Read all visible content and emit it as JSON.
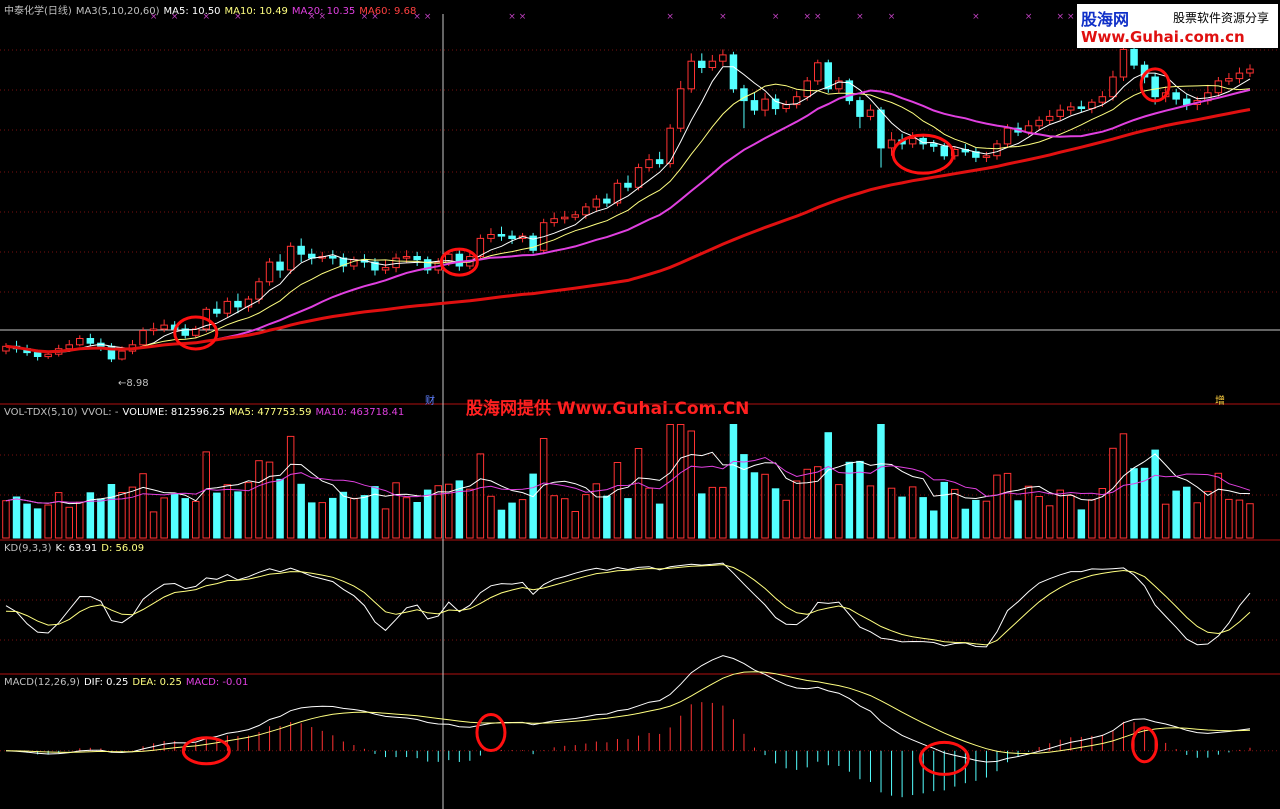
{
  "headers": {
    "main": [
      {
        "text": "中泰化学(日线)",
        "color": "#c0c0c0"
      },
      {
        "text": "MA3(5,10,20,60)",
        "color": "#c0c0c0"
      },
      {
        "text": "MA5: 10.50",
        "color": "#ffffff"
      },
      {
        "text": "MA10: 10.49",
        "color": "#ffff80"
      },
      {
        "text": "MA20: 10.35",
        "color": "#e040e0"
      },
      {
        "text": "MA60: 9.68",
        "color": "#ff4040"
      }
    ],
    "vol": [
      {
        "text": "VOL-TDX(5,10)",
        "color": "#c0c0c0"
      },
      {
        "text": "VVOL: -",
        "color": "#c0c0c0"
      },
      {
        "text": "VOLUME: 812596.25",
        "color": "#ffffff"
      },
      {
        "text": "MA5: 477753.59",
        "color": "#ffff80"
      },
      {
        "text": "MA10: 463718.41",
        "color": "#e040e0"
      }
    ],
    "kd": [
      {
        "text": "KD(9,3,3)",
        "color": "#c0c0c0"
      },
      {
        "text": "K: 63.91",
        "color": "#ffffff"
      },
      {
        "text": "D: 56.09",
        "color": "#ffff80"
      }
    ],
    "macd": [
      {
        "text": "MACD(12,26,9)",
        "color": "#c0c0c0"
      },
      {
        "text": "DIF: 0.25",
        "color": "#ffffff"
      },
      {
        "text": "DEA: 0.25",
        "color": "#ffff80"
      },
      {
        "text": "MACD: -0.01",
        "color": "#e040e0"
      }
    ]
  },
  "logo": {
    "name": "股海网",
    "slogan": "股票软件资源分享",
    "url": "Www.Guhai.com.cn"
  },
  "watermark": "股海网提供 Www.Guhai.Com.CN",
  "markers": {
    "low_label": "←8.98",
    "cai": "财",
    "zeng": "增"
  },
  "colors": {
    "up": "#ff3232",
    "down": "#54ffff",
    "ma5": "#ffffff",
    "ma10": "#ffff80",
    "ma20": "#e040e0",
    "ma60": "#e01010",
    "grid": "#7a1010",
    "circle": "#ff1010"
  },
  "chart_data": {
    "type": "candlestick",
    "candles": [
      [
        9.12,
        9.18,
        9.22,
        9.08
      ],
      [
        9.18,
        9.15,
        9.25,
        9.1
      ],
      [
        9.15,
        9.1,
        9.2,
        9.06
      ],
      [
        9.1,
        9.05,
        9.14,
        9.0
      ],
      [
        9.05,
        9.08,
        9.12,
        9.02
      ],
      [
        9.08,
        9.15,
        9.2,
        9.05
      ],
      [
        9.15,
        9.2,
        9.26,
        9.12
      ],
      [
        9.2,
        9.28,
        9.32,
        9.18
      ],
      [
        9.28,
        9.22,
        9.34,
        9.18
      ],
      [
        9.22,
        9.18,
        9.28,
        9.12
      ],
      [
        9.18,
        9.02,
        9.22,
        8.98
      ],
      [
        9.02,
        9.12,
        9.18,
        9.0
      ],
      [
        9.12,
        9.2,
        9.26,
        9.08
      ],
      [
        9.2,
        9.38,
        9.42,
        9.16
      ],
      [
        9.38,
        9.4,
        9.48,
        9.32
      ],
      [
        9.4,
        9.45,
        9.52,
        9.36
      ],
      [
        9.45,
        9.4,
        9.5,
        9.34
      ],
      [
        9.4,
        9.32,
        9.46,
        9.28
      ],
      [
        9.32,
        9.4,
        9.44,
        9.28
      ],
      [
        9.4,
        9.65,
        9.68,
        9.36
      ],
      [
        9.65,
        9.6,
        9.75,
        9.55
      ],
      [
        9.6,
        9.75,
        9.8,
        9.55
      ],
      [
        9.75,
        9.68,
        9.85,
        9.6
      ],
      [
        9.68,
        9.78,
        9.82,
        9.62
      ],
      [
        9.78,
        10.0,
        10.05,
        9.72
      ],
      [
        10.0,
        10.25,
        10.3,
        9.95
      ],
      [
        10.25,
        10.15,
        10.35,
        10.05
      ],
      [
        10.15,
        10.45,
        10.5,
        10.1
      ],
      [
        10.45,
        10.35,
        10.55,
        10.25
      ],
      [
        10.35,
        10.3,
        10.42,
        10.22
      ],
      [
        10.3,
        10.32,
        10.38,
        10.25
      ],
      [
        10.32,
        10.3,
        10.4,
        10.22
      ],
      [
        10.3,
        10.2,
        10.36,
        10.12
      ],
      [
        10.2,
        10.28,
        10.32,
        10.15
      ],
      [
        10.28,
        10.25,
        10.35,
        10.18
      ],
      [
        10.25,
        10.15,
        10.3,
        10.08
      ],
      [
        10.15,
        10.18,
        10.28,
        10.1
      ],
      [
        10.18,
        10.3,
        10.36,
        10.12
      ],
      [
        10.3,
        10.32,
        10.4,
        10.24
      ],
      [
        10.32,
        10.28,
        10.38,
        10.2
      ],
      [
        10.28,
        10.15,
        10.32,
        10.1
      ],
      [
        10.15,
        10.25,
        10.3,
        10.1
      ],
      [
        10.25,
        10.35,
        10.4,
        10.2
      ],
      [
        10.35,
        10.2,
        10.42,
        10.14
      ],
      [
        10.2,
        10.32,
        10.38,
        10.16
      ],
      [
        10.32,
        10.55,
        10.6,
        10.28
      ],
      [
        10.55,
        10.6,
        10.68,
        10.5
      ],
      [
        10.6,
        10.58,
        10.7,
        10.52
      ],
      [
        10.58,
        10.55,
        10.65,
        10.48
      ],
      [
        10.55,
        10.58,
        10.62,
        10.5
      ],
      [
        10.58,
        10.4,
        10.62,
        10.36
      ],
      [
        10.4,
        10.75,
        10.8,
        10.35
      ],
      [
        10.75,
        10.8,
        10.88,
        10.7
      ],
      [
        10.8,
        10.82,
        10.9,
        10.74
      ],
      [
        10.82,
        10.85,
        10.9,
        10.78
      ],
      [
        10.85,
        10.95,
        11.0,
        10.8
      ],
      [
        10.95,
        11.05,
        11.1,
        10.9
      ],
      [
        11.05,
        11.0,
        11.12,
        10.95
      ],
      [
        11.0,
        11.25,
        11.3,
        10.96
      ],
      [
        11.25,
        11.2,
        11.35,
        11.15
      ],
      [
        11.2,
        11.45,
        11.5,
        11.16
      ],
      [
        11.45,
        11.55,
        11.62,
        11.4
      ],
      [
        11.55,
        11.5,
        11.65,
        11.45
      ],
      [
        11.5,
        11.95,
        12.0,
        11.45
      ],
      [
        11.95,
        12.45,
        12.55,
        11.9
      ],
      [
        12.45,
        12.8,
        12.9,
        12.4
      ],
      [
        12.8,
        12.72,
        12.9,
        12.65
      ],
      [
        12.72,
        12.8,
        12.88,
        12.68
      ],
      [
        12.8,
        12.88,
        12.95,
        12.74
      ],
      [
        12.88,
        12.45,
        12.92,
        12.4
      ],
      [
        12.45,
        12.3,
        12.5,
        11.95
      ],
      [
        12.3,
        12.18,
        12.4,
        12.12
      ],
      [
        12.18,
        12.32,
        12.4,
        12.1
      ],
      [
        12.32,
        12.2,
        12.38,
        12.12
      ],
      [
        12.2,
        12.25,
        12.3,
        12.15
      ],
      [
        12.25,
        12.35,
        12.42,
        12.2
      ],
      [
        12.35,
        12.55,
        12.6,
        12.3
      ],
      [
        12.55,
        12.78,
        12.82,
        12.5
      ],
      [
        12.78,
        12.45,
        12.82,
        12.4
      ],
      [
        12.45,
        12.55,
        12.6,
        12.4
      ],
      [
        12.55,
        12.3,
        12.58,
        12.25
      ],
      [
        12.3,
        12.1,
        12.35,
        11.95
      ],
      [
        12.1,
        12.18,
        12.25,
        12.05
      ],
      [
        12.18,
        11.7,
        12.22,
        11.45
      ],
      [
        11.7,
        11.8,
        11.9,
        11.6
      ],
      [
        11.8,
        11.75,
        11.88,
        11.68
      ],
      [
        11.75,
        11.82,
        11.9,
        11.7
      ],
      [
        11.82,
        11.75,
        11.86,
        11.68
      ],
      [
        11.75,
        11.72,
        11.8,
        11.65
      ],
      [
        11.72,
        11.6,
        11.76,
        11.55
      ],
      [
        11.6,
        11.68,
        11.72,
        11.55
      ],
      [
        11.68,
        11.65,
        11.75,
        11.6
      ],
      [
        11.65,
        11.58,
        11.7,
        11.52
      ],
      [
        11.58,
        11.6,
        11.65,
        11.52
      ],
      [
        11.6,
        11.75,
        11.8,
        11.55
      ],
      [
        11.75,
        11.95,
        12.0,
        11.7
      ],
      [
        11.95,
        11.9,
        12.02,
        11.85
      ],
      [
        11.9,
        11.98,
        12.05,
        11.86
      ],
      [
        11.98,
        12.05,
        12.1,
        11.92
      ],
      [
        12.05,
        12.1,
        12.18,
        12.0
      ],
      [
        12.1,
        12.18,
        12.25,
        12.05
      ],
      [
        12.18,
        12.22,
        12.28,
        12.12
      ],
      [
        12.22,
        12.2,
        12.3,
        12.15
      ],
      [
        12.2,
        12.28,
        12.32,
        12.14
      ],
      [
        12.28,
        12.35,
        12.42,
        12.22
      ],
      [
        12.35,
        12.6,
        12.68,
        12.3
      ],
      [
        12.6,
        12.95,
        13.05,
        12.55
      ],
      [
        12.95,
        12.75,
        13.0,
        12.7
      ],
      [
        12.75,
        12.6,
        12.8,
        12.52
      ],
      [
        12.6,
        12.35,
        12.65,
        12.25
      ],
      [
        12.35,
        12.4,
        12.48,
        12.28
      ],
      [
        12.4,
        12.32,
        12.45,
        12.25
      ],
      [
        12.32,
        12.25,
        12.38,
        12.18
      ],
      [
        12.25,
        12.3,
        12.35,
        12.18
      ],
      [
        12.3,
        12.4,
        12.5,
        12.25
      ],
      [
        12.4,
        12.55,
        12.6,
        12.35
      ],
      [
        12.55,
        12.58,
        12.65,
        12.5
      ],
      [
        12.58,
        12.65,
        12.72,
        12.52
      ],
      [
        12.65,
        12.7,
        12.76,
        12.6
      ]
    ],
    "price_ylim": [
      8.6,
      13.4
    ],
    "vol_ylim": [
      0,
      1.3
    ],
    "kd_ylim": [
      0,
      100
    ],
    "macd_ylim": [
      -0.35,
      0.4
    ],
    "circles": [
      {
        "pane": "main",
        "i": 18,
        "v": 9.35,
        "rx": 21,
        "ry": 16
      },
      {
        "pane": "main",
        "i": 43,
        "v": 10.25,
        "rx": 18,
        "ry": 13
      },
      {
        "pane": "main",
        "i": 87,
        "v": 11.62,
        "rx": 30,
        "ry": 19
      },
      {
        "pane": "main",
        "i": 109,
        "v": 12.5,
        "rx": 14,
        "ry": 16
      },
      {
        "pane": "macd",
        "i": 19,
        "v": 0.0,
        "rx": 23,
        "ry": 13
      },
      {
        "pane": "macd",
        "i": 46,
        "v": 0.12,
        "rx": 14,
        "ry": 18
      },
      {
        "pane": "macd",
        "i": 89,
        "v": -0.05,
        "rx": 24,
        "ry": 16
      },
      {
        "pane": "macd",
        "i": 108,
        "v": 0.04,
        "rx": 12,
        "ry": 17
      }
    ]
  }
}
